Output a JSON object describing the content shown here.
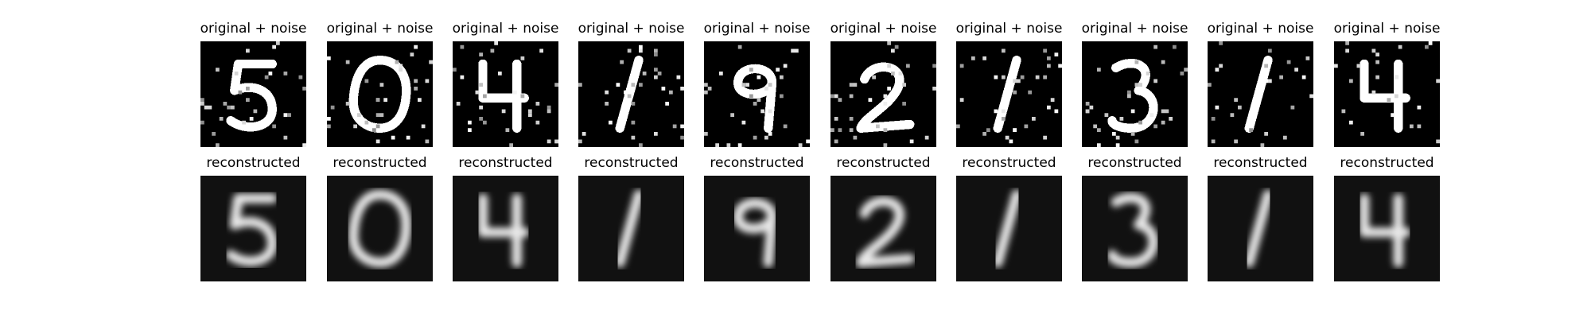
{
  "figure": {
    "rows": [
      {
        "title": "original + noise",
        "kind": "noisy",
        "digits": [
          "5",
          "0",
          "4",
          "1",
          "9",
          "2",
          "1",
          "3",
          "1",
          "4"
        ]
      },
      {
        "title": "reconstructed",
        "kind": "clean",
        "digits": [
          "5",
          "0",
          "4",
          "1",
          "9",
          "2",
          "1",
          "3",
          "1",
          "4"
        ]
      }
    ]
  },
  "colors": {
    "background": "#000000",
    "stroke": "#ffffff"
  }
}
